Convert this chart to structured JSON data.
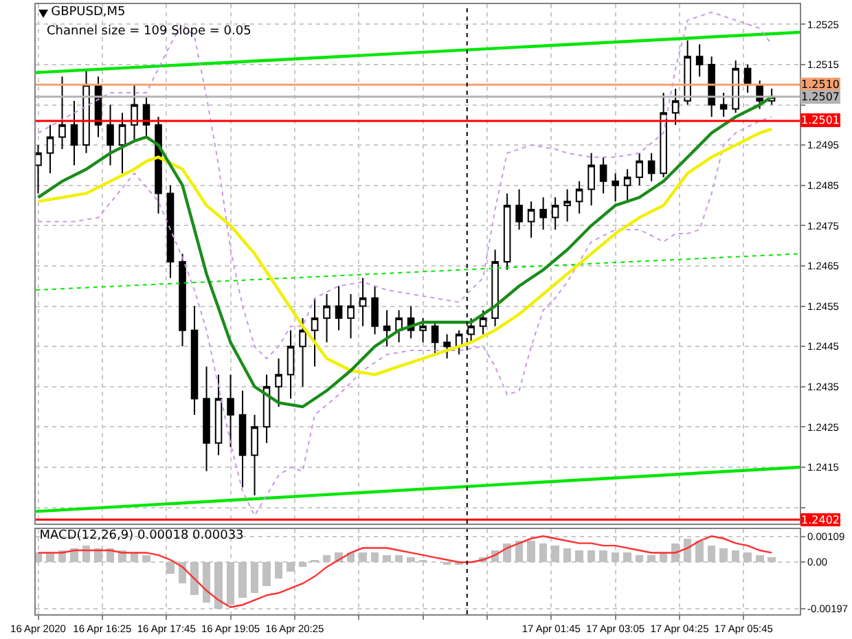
{
  "chart_data": [
    {
      "type": "candlestick",
      "title": "GBPUSD,M5",
      "subtitle": "Channel size = 109 Slope = 0.05",
      "color": "#000000",
      "x": [
        "2020-04-16T15:05",
        "2020-04-16T15:20",
        "2020-04-16T15:35",
        "2020-04-16T15:50",
        "2020-04-16T16:05",
        "2020-04-16T16:20",
        "2020-04-16T16:35",
        "2020-04-16T16:50",
        "2020-04-16T17:05",
        "2020-04-16T17:20",
        "2020-04-16T17:35",
        "2020-04-16T17:50",
        "2020-04-16T18:05",
        "2020-04-16T18:20",
        "2020-04-16T18:35",
        "2020-04-16T18:50",
        "2020-04-16T19:05",
        "2020-04-16T19:20",
        "2020-04-16T19:35",
        "2020-04-16T19:50",
        "2020-04-16T20:05",
        "2020-04-16T20:20",
        "2020-04-16T20:35",
        "2020-04-16T20:50",
        "2020-04-16T21:05",
        "2020-04-16T21:20",
        "2020-04-16T21:35",
        "2020-04-16T21:50",
        "2020-04-16T22:05",
        "2020-04-16T22:20",
        "2020-04-16T22:35",
        "2020-04-16T22:50",
        "2020-04-16T23:05",
        "2020-04-16T23:20",
        "2020-04-16T23:35",
        "2020-04-16T23:50",
        "2020-04-17T00:05",
        "2020-04-17T00:20",
        "2020-04-17T00:35",
        "2020-04-17T00:50",
        "2020-04-17T01:05",
        "2020-04-17T01:20",
        "2020-04-17T01:35",
        "2020-04-17T01:50",
        "2020-04-17T02:05",
        "2020-04-17T02:20",
        "2020-04-17T02:35",
        "2020-04-17T02:50",
        "2020-04-17T03:05",
        "2020-04-17T03:20",
        "2020-04-17T03:35",
        "2020-04-17T03:50",
        "2020-04-17T04:05",
        "2020-04-17T04:20",
        "2020-04-17T04:35",
        "2020-04-17T04:50",
        "2020-04-17T05:05",
        "2020-04-17T05:20",
        "2020-04-17T05:35",
        "2020-04-17T05:50",
        "2020-04-17T06:05",
        "2020-04-17T06:20"
      ],
      "ohlc": [
        [
          1.249,
          1.2495,
          1.2483,
          1.2493
        ],
        [
          1.2493,
          1.25,
          1.2488,
          1.2497
        ],
        [
          1.2497,
          1.2512,
          1.2494,
          1.25
        ],
        [
          1.25,
          1.2506,
          1.249,
          1.2495
        ],
        [
          1.2495,
          1.2514,
          1.2493,
          1.251
        ],
        [
          1.251,
          1.2512,
          1.2497,
          1.25
        ],
        [
          1.25,
          1.2505,
          1.249,
          1.2495
        ],
        [
          1.2495,
          1.2503,
          1.2488,
          1.25
        ],
        [
          1.25,
          1.251,
          1.2496,
          1.2505
        ],
        [
          1.2505,
          1.2507,
          1.2497,
          1.25
        ],
        [
          1.25,
          1.2502,
          1.2478,
          1.2483
        ],
        [
          1.2483,
          1.2485,
          1.2462,
          1.2466
        ],
        [
          1.2466,
          1.2468,
          1.2445,
          1.2449
        ],
        [
          1.2449,
          1.2455,
          1.2428,
          1.2432
        ],
        [
          1.2432,
          1.244,
          1.2414,
          1.2421
        ],
        [
          1.2421,
          1.2438,
          1.2418,
          1.2432
        ],
        [
          1.2432,
          1.2438,
          1.242,
          1.2428
        ],
        [
          1.2428,
          1.2434,
          1.241,
          1.2418
        ],
        [
          1.2418,
          1.2428,
          1.2408,
          1.2425
        ],
        [
          1.2425,
          1.2438,
          1.2421,
          1.2435
        ],
        [
          1.2435,
          1.2442,
          1.243,
          1.2438
        ],
        [
          1.2438,
          1.2449,
          1.2432,
          1.2445
        ],
        [
          1.2445,
          1.2452,
          1.2435,
          1.2449
        ],
        [
          1.2449,
          1.2457,
          1.244,
          1.2452
        ],
        [
          1.2452,
          1.2458,
          1.2446,
          1.2455
        ],
        [
          1.2455,
          1.246,
          1.2449,
          1.2452
        ],
        [
          1.2452,
          1.2458,
          1.2447,
          1.2455
        ],
        [
          1.2455,
          1.2462,
          1.245,
          1.2457
        ],
        [
          1.2457,
          1.246,
          1.2448,
          1.245
        ],
        [
          1.245,
          1.2454,
          1.2445,
          1.2449
        ],
        [
          1.2449,
          1.2454,
          1.2446,
          1.2452
        ],
        [
          1.2452,
          1.2455,
          1.2447,
          1.2449
        ],
        [
          1.2449,
          1.2452,
          1.2446,
          1.245
        ],
        [
          1.245,
          1.2451,
          1.2443,
          1.2446
        ],
        [
          1.2446,
          1.2448,
          1.2442,
          1.2445
        ],
        [
          1.2445,
          1.2449,
          1.2443,
          1.2448
        ],
        [
          1.2448,
          1.2452,
          1.2446,
          1.245
        ],
        [
          1.245,
          1.2454,
          1.2448,
          1.2452
        ],
        [
          1.2452,
          1.2469,
          1.245,
          1.2466
        ],
        [
          1.2466,
          1.2483,
          1.2464,
          1.248
        ],
        [
          1.248,
          1.2484,
          1.2474,
          1.2476
        ],
        [
          1.2476,
          1.2481,
          1.2472,
          1.2479
        ],
        [
          1.2479,
          1.2482,
          1.2474,
          1.2477
        ],
        [
          1.2477,
          1.2482,
          1.2474,
          1.248
        ],
        [
          1.248,
          1.2484,
          1.2476,
          1.2481
        ],
        [
          1.2481,
          1.2486,
          1.2478,
          1.2484
        ],
        [
          1.2484,
          1.2493,
          1.248,
          1.249
        ],
        [
          1.249,
          1.2492,
          1.2483,
          1.2486
        ],
        [
          1.2486,
          1.2488,
          1.2481,
          1.2485
        ],
        [
          1.2485,
          1.2489,
          1.2481,
          1.2487
        ],
        [
          1.2487,
          1.2493,
          1.2485,
          1.2491
        ],
        [
          1.2491,
          1.2493,
          1.2486,
          1.2488
        ],
        [
          1.2488,
          1.2508,
          1.2487,
          1.2503
        ],
        [
          1.2503,
          1.2509,
          1.25,
          1.2506
        ],
        [
          1.2506,
          1.2521,
          1.2505,
          1.2517
        ],
        [
          1.2517,
          1.252,
          1.2512,
          1.2515
        ],
        [
          1.2515,
          1.2517,
          1.2502,
          1.2505
        ],
        [
          1.2505,
          1.2508,
          1.2502,
          1.2504
        ],
        [
          1.2504,
          1.2516,
          1.2503,
          1.2514
        ],
        [
          1.2514,
          1.2515,
          1.2508,
          1.251
        ],
        [
          1.251,
          1.2511,
          1.2504,
          1.2506
        ],
        [
          1.2506,
          1.2509,
          1.2505,
          1.2507
        ]
      ],
      "series": [
        {
          "type": "line",
          "color": "#00e600",
          "x": [
            "2020-04-16T15:02",
            "2020-04-17T06:55"
          ],
          "values": [
            1.2513,
            1.2523
          ]
        },
        {
          "type": "line",
          "color": "#00e600",
          "x": [
            "2020-04-16T15:02",
            "2020-04-17T06:55"
          ],
          "values": [
            1.2404,
            1.2415
          ]
        },
        {
          "type": "line",
          "color": "#00e600",
          "line_style": "dotted",
          "x": [
            "2020-04-16T15:02",
            "2020-04-17T06:55"
          ],
          "values": [
            1.2459,
            1.2468
          ]
        },
        {
          "type": "line",
          "color": "#c896e6",
          "line_style": "dotted",
          "x": [
            "2020-04-16T15:05",
            "2020-04-16T15:50",
            "2020-04-16T16:35",
            "2020-04-16T17:20",
            "2020-04-16T17:50",
            "2020-04-16T18:05",
            "2020-04-16T18:20",
            "2020-04-16T18:35",
            "2020-04-16T18:50",
            "2020-04-16T19:05",
            "2020-04-16T19:20",
            "2020-04-16T19:35",
            "2020-04-16T19:50",
            "2020-04-16T20:05",
            "2020-04-16T20:20",
            "2020-04-16T20:35",
            "2020-04-16T20:50",
            "2020-04-16T21:20",
            "2020-04-16T21:50",
            "2020-04-16T22:20",
            "2020-04-16T22:50",
            "2020-04-16T23:20",
            "2020-04-16T23:50",
            "2020-04-17T00:20",
            "2020-04-17T00:35",
            "2020-04-17T00:50",
            "2020-04-17T01:20",
            "2020-04-17T01:50",
            "2020-04-17T02:05",
            "2020-04-17T02:35",
            "2020-04-17T03:05",
            "2020-04-17T03:35",
            "2020-04-17T04:05",
            "2020-04-17T04:20",
            "2020-04-17T04:35",
            "2020-04-17T05:05",
            "2020-04-17T05:35",
            "2020-04-17T06:05",
            "2020-04-17T06:20"
          ],
          "values": [
            1.2498,
            1.2503,
            1.2508,
            1.2508,
            1.252,
            1.2525,
            1.2522,
            1.2507,
            1.249,
            1.2469,
            1.2455,
            1.2445,
            1.2442,
            1.2445,
            1.245,
            1.245,
            1.2457,
            1.246,
            1.2461,
            1.2459,
            1.2458,
            1.2457,
            1.2456,
            1.2462,
            1.2479,
            1.2493,
            1.2495,
            1.2494,
            1.2493,
            1.2492,
            1.2492,
            1.2493,
            1.2498,
            1.2514,
            1.2526,
            1.2528,
            1.2526,
            1.2524,
            1.252
          ]
        },
        {
          "type": "line",
          "color": "#c896e6",
          "line_style": "dotted",
          "x": [
            "2020-04-16T15:05",
            "2020-04-16T15:50",
            "2020-04-16T16:20",
            "2020-04-16T17:05",
            "2020-04-16T17:35",
            "2020-04-16T18:05",
            "2020-04-16T18:20",
            "2020-04-16T18:35",
            "2020-04-16T18:50",
            "2020-04-16T19:05",
            "2020-04-16T19:20",
            "2020-04-16T19:35",
            "2020-04-16T19:50",
            "2020-04-16T20:05",
            "2020-04-16T20:20",
            "2020-04-16T20:35",
            "2020-04-16T20:50",
            "2020-04-16T21:20",
            "2020-04-16T21:50",
            "2020-04-16T22:20",
            "2020-04-16T22:50",
            "2020-04-16T23:20",
            "2020-04-16T23:50",
            "2020-04-17T00:20",
            "2020-04-17T00:35",
            "2020-04-17T00:50",
            "2020-04-17T01:05",
            "2020-04-17T01:20",
            "2020-04-17T01:35",
            "2020-04-17T01:50",
            "2020-04-17T02:05",
            "2020-04-17T02:35",
            "2020-04-17T03:05",
            "2020-04-17T03:35",
            "2020-04-17T04:05",
            "2020-04-17T04:20",
            "2020-04-17T04:35",
            "2020-04-17T04:50",
            "2020-04-17T05:05",
            "2020-04-17T05:20",
            "2020-04-17T05:35",
            "2020-04-17T06:05",
            "2020-04-17T06:20"
          ],
          "values": [
            1.2476,
            1.2476,
            1.2477,
            1.2488,
            1.2481,
            1.2467,
            1.2459,
            1.2449,
            1.2435,
            1.2421,
            1.2409,
            1.2403,
            1.2408,
            1.2413,
            1.2415,
            1.2414,
            1.2428,
            1.2433,
            1.2439,
            1.2443,
            1.2444,
            1.2444,
            1.2444,
            1.2445,
            1.244,
            1.2433,
            1.2434,
            1.2445,
            1.2454,
            1.2457,
            1.2461,
            1.2471,
            1.2474,
            1.2474,
            1.2471,
            1.2473,
            1.2473,
            1.2474,
            1.2483,
            1.2495,
            1.2498,
            1.2501,
            1.2502
          ]
        },
        {
          "type": "line",
          "color": "#f0f000",
          "x": [
            "2020-04-16T15:05",
            "2020-04-16T15:35",
            "2020-04-16T16:05",
            "2020-04-16T16:35",
            "2020-04-16T17:05",
            "2020-04-16T17:20",
            "2020-04-16T17:35",
            "2020-04-16T18:05",
            "2020-04-16T18:35",
            "2020-04-16T19:05",
            "2020-04-16T19:35",
            "2020-04-16T20:05",
            "2020-04-16T20:35",
            "2020-04-16T21:05",
            "2020-04-16T21:35",
            "2020-04-16T22:05",
            "2020-04-16T22:35",
            "2020-04-16T23:05",
            "2020-04-16T23:35",
            "2020-04-17T00:05",
            "2020-04-17T00:35",
            "2020-04-17T01:05",
            "2020-04-17T01:35",
            "2020-04-17T02:05",
            "2020-04-17T02:35",
            "2020-04-17T03:05",
            "2020-04-17T03:35",
            "2020-04-17T04:05",
            "2020-04-17T04:35",
            "2020-04-17T05:05",
            "2020-04-17T05:35",
            "2020-04-17T06:05",
            "2020-04-17T06:20"
          ],
          "values": [
            1.2481,
            1.2482,
            1.2483,
            1.2486,
            1.2489,
            1.2491,
            1.2492,
            1.2489,
            1.248,
            1.2475,
            1.2468,
            1.2459,
            1.245,
            1.2442,
            1.2439,
            1.2438,
            1.244,
            1.2442,
            1.2444,
            1.2446,
            1.2449,
            1.2453,
            1.2458,
            1.2463,
            1.2468,
            1.2473,
            1.2477,
            1.248,
            1.2488,
            1.2492,
            1.2495,
            1.2498,
            1.2499
          ]
        },
        {
          "type": "line",
          "color": "#1a8c1a",
          "x": [
            "2020-04-16T15:05",
            "2020-04-16T15:35",
            "2020-04-16T16:05",
            "2020-04-16T16:35",
            "2020-04-16T17:05",
            "2020-04-16T17:20",
            "2020-04-16T17:35",
            "2020-04-16T18:05",
            "2020-04-16T18:35",
            "2020-04-16T19:05",
            "2020-04-16T19:35",
            "2020-04-16T20:05",
            "2020-04-16T20:35",
            "2020-04-16T21:05",
            "2020-04-16T21:35",
            "2020-04-16T22:05",
            "2020-04-16T22:35",
            "2020-04-16T23:05",
            "2020-04-16T23:35",
            "2020-04-17T00:05",
            "2020-04-17T00:35",
            "2020-04-17T01:05",
            "2020-04-17T01:35",
            "2020-04-17T02:05",
            "2020-04-17T02:35",
            "2020-04-17T03:05",
            "2020-04-17T03:35",
            "2020-04-17T04:05",
            "2020-04-17T04:35",
            "2020-04-17T05:05",
            "2020-04-17T05:35",
            "2020-04-17T06:05",
            "2020-04-17T06:20"
          ],
          "values": [
            1.2482,
            1.2486,
            1.2489,
            1.2493,
            1.2496,
            1.2497,
            1.2495,
            1.2485,
            1.2463,
            1.2446,
            1.2435,
            1.2431,
            1.243,
            1.2434,
            1.2439,
            1.2445,
            1.2449,
            1.2451,
            1.2451,
            1.2451,
            1.2455,
            1.246,
            1.2464,
            1.2469,
            1.2475,
            1.248,
            1.2482,
            1.2486,
            1.2492,
            1.2498,
            1.2502,
            1.2505,
            1.2507
          ]
        }
      ],
      "xlim": [
        "2020-04-16T15:02",
        "2020-04-17T06:55"
      ],
      "xticks": [
        {
          "value": "2020-04-16T15:05",
          "label": null
        },
        {
          "value": "2020-04-16T16:25",
          "label": null
        },
        {
          "value": "2020-04-16T17:45",
          "label": null
        },
        {
          "value": "2020-04-16T19:05",
          "label": null
        },
        {
          "value": "2020-04-16T20:25",
          "label": null
        },
        {
          "value": "2020-04-16T21:45",
          "label": null
        },
        {
          "value": "2020-04-16T23:05",
          "label": null
        },
        {
          "value": "2020-04-17T00:25",
          "label": null
        },
        {
          "value": "2020-04-17T01:45",
          "label": null
        },
        {
          "value": "2020-04-17T03:05",
          "label": null
        },
        {
          "value": "2020-04-17T04:25",
          "label": null
        },
        {
          "value": "2020-04-17T05:45",
          "label": null
        }
      ],
      "ylim": [
        1.2401,
        1.253
      ],
      "yticks": [
        {
          "value": 1.2405,
          "label": null
        },
        1.2415,
        1.2425,
        1.2435,
        1.2445,
        1.2455,
        1.2465,
        1.2475,
        1.2485,
        1.2495,
        {
          "value": 1.2505,
          "label": null
        },
        1.2515,
        1.2525
      ],
      "tick_labels": "y",
      "grid": true,
      "ref_lines": [
        {
          "axis": "y",
          "value": 1.251,
          "label": "1.2510",
          "color": "#f5a070"
        },
        {
          "axis": "y",
          "value": 1.2507,
          "label": "1.2507",
          "color": "#b4b4b4"
        },
        {
          "axis": "y",
          "value": 1.2501,
          "label": "1.2501",
          "color": "#ff0000"
        },
        {
          "axis": "y",
          "value": 1.2402,
          "label": "1.2402",
          "color": "#ff0000"
        },
        {
          "axis": "x",
          "value": "2020-04-17T00:00",
          "color": "#000000",
          "line_style": "dotted"
        }
      ]
    },
    {
      "type": "bar",
      "title": "MACD(12,26,9) 0.00018 0.00033",
      "x": [
        "2020-04-16T15:05",
        "2020-04-16T15:20",
        "2020-04-16T15:35",
        "2020-04-16T15:50",
        "2020-04-16T16:05",
        "2020-04-16T16:20",
        "2020-04-16T16:35",
        "2020-04-16T16:50",
        "2020-04-16T17:05",
        "2020-04-16T17:20",
        "2020-04-16T17:35",
        "2020-04-16T17:50",
        "2020-04-16T18:05",
        "2020-04-16T18:20",
        "2020-04-16T18:35",
        "2020-04-16T18:50",
        "2020-04-16T19:05",
        "2020-04-16T19:20",
        "2020-04-16T19:35",
        "2020-04-16T19:50",
        "2020-04-16T20:05",
        "2020-04-16T20:20",
        "2020-04-16T20:35",
        "2020-04-16T20:50",
        "2020-04-16T21:05",
        "2020-04-16T21:20",
        "2020-04-16T21:35",
        "2020-04-16T21:50",
        "2020-04-16T22:05",
        "2020-04-16T22:20",
        "2020-04-16T22:35",
        "2020-04-16T22:50",
        "2020-04-16T23:05",
        "2020-04-16T23:20",
        "2020-04-16T23:35",
        "2020-04-16T23:50",
        "2020-04-17T00:05",
        "2020-04-17T00:20",
        "2020-04-17T00:35",
        "2020-04-17T00:50",
        "2020-04-17T01:05",
        "2020-04-17T01:20",
        "2020-04-17T01:35",
        "2020-04-17T01:50",
        "2020-04-17T02:05",
        "2020-04-17T02:20",
        "2020-04-17T02:35",
        "2020-04-17T02:50",
        "2020-04-17T03:05",
        "2020-04-17T03:20",
        "2020-04-17T03:35",
        "2020-04-17T03:50",
        "2020-04-17T04:05",
        "2020-04-17T04:20",
        "2020-04-17T04:35",
        "2020-04-17T04:50",
        "2020-04-17T05:05",
        "2020-04-17T05:20",
        "2020-04-17T05:35",
        "2020-04-17T05:50",
        "2020-04-17T06:05",
        "2020-04-17T06:20"
      ],
      "series": [
        {
          "type": "bar",
          "color": "#c0c0c0",
          "values": [
            0.0004,
            0.0004,
            0.0005,
            0.0006,
            0.0007,
            0.0006,
            0.0006,
            0.0005,
            0.0004,
            0.0003,
            0,
            -0.0005,
            -0.0009,
            -0.0014,
            -0.0017,
            -0.00197,
            -0.0018,
            -0.0015,
            -0.0013,
            -0.001,
            -0.0007,
            -0.0004,
            -0.0002,
            0.0001,
            0.0003,
            0.0004,
            0.0004,
            0.0004,
            0.0004,
            0.0003,
            0.0003,
            0.0002,
            0.0001,
            0,
            -0.0001,
            -0.0001,
            0,
            0.0002,
            0.0005,
            0.0008,
            0.0009,
            0.0009,
            0.0008,
            0.0007,
            0.0006,
            0.0005,
            0.0005,
            0.0005,
            0.0004,
            0.0004,
            0.0003,
            0.0003,
            0.0004,
            0.0008,
            0.001,
            0.0009,
            0.0007,
            0.0006,
            0.0005,
            0.0004,
            0.0003,
            0.0002
          ]
        },
        {
          "type": "line",
          "color": "#ff3030",
          "values": [
            0.0004,
            0.0004,
            0.0004,
            0.0005,
            0.0005,
            0.0005,
            0.0005,
            0.0004,
            0.0004,
            0.0004,
            0.0003,
            0.0001,
            -0.0002,
            -0.0007,
            -0.0012,
            -0.0016,
            -0.0019,
            -0.0018,
            -0.0016,
            -0.0014,
            -0.0013,
            -0.0011,
            -0.0009,
            -0.0006,
            -0.0002,
            0.0001,
            0.0004,
            0.0006,
            0.0006,
            0.0006,
            0.0005,
            0.0004,
            0.0003,
            0.0002,
            0.0001,
            0,
            0,
            0.0001,
            0.0003,
            0.0006,
            0.0008,
            0.001,
            0.0011,
            0.001,
            0.0009,
            0.0008,
            0.0008,
            0.0007,
            0.0007,
            0.0006,
            0.0005,
            0.0004,
            0.0004,
            0.0004,
            0.0006,
            0.0009,
            0.0011,
            0.001,
            0.0008,
            0.0007,
            0.0005,
            0.0004
          ]
        }
      ],
      "xlim": [
        "2020-04-16T15:02",
        "2020-04-17T06:55"
      ],
      "xticks": [
        {
          "value": "2020-04-16T15:05",
          "label": "16 Apr 2020"
        },
        {
          "value": "2020-04-16T16:25",
          "label": "16 Apr 16:25"
        },
        {
          "value": "2020-04-16T17:45",
          "label": "16 Apr 17:45"
        },
        {
          "value": "2020-04-16T19:05",
          "label": "16 Apr 19:05"
        },
        {
          "value": "2020-04-16T20:25",
          "label": "16 Apr 20:25"
        },
        {
          "value": "2020-04-16T21:45",
          "label": null
        },
        {
          "value": "2020-04-16T23:05",
          "label": null
        },
        {
          "value": "2020-04-17T00:25",
          "label": null
        },
        {
          "value": "2020-04-17T01:45",
          "label": "17 Apr 01:45"
        },
        {
          "value": "2020-04-17T03:05",
          "label": "17 Apr 03:05"
        },
        {
          "value": "2020-04-17T04:25",
          "label": "17 Apr 04:25"
        },
        {
          "value": "2020-04-17T05:45",
          "label": "17 Apr 05:45"
        }
      ],
      "ylim": [
        -0.0022,
        0.0014
      ],
      "yticks": [
        -0.00197,
        {
          "value": 0,
          "label": "0.00"
        },
        0.00109
      ],
      "grid": true,
      "ref_lines": [
        {
          "axis": "x",
          "value": "2020-04-17T00:00",
          "color": "#000000",
          "line_style": "dotted"
        }
      ]
    }
  ]
}
